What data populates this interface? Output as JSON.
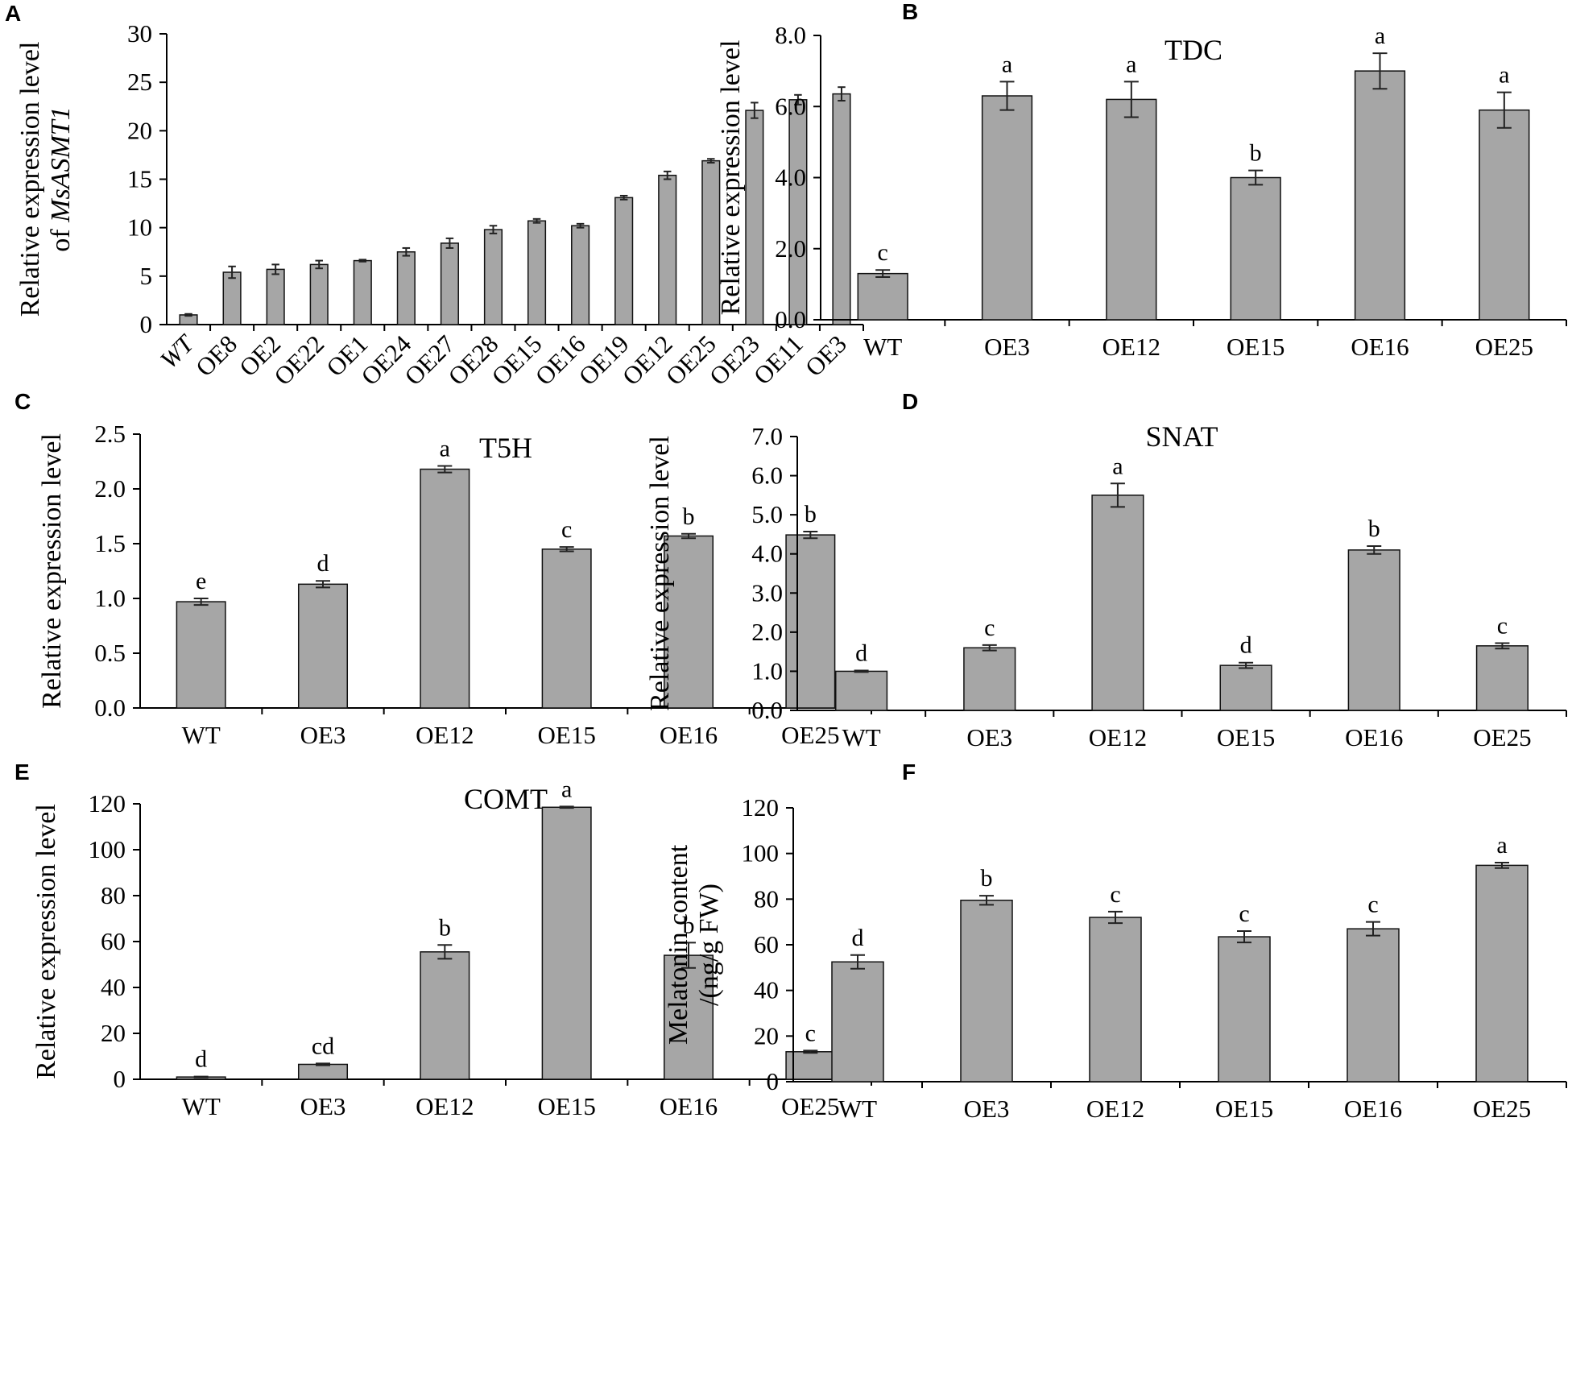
{
  "figure": {
    "colors": {
      "bar_fill": "#a6a6a6",
      "bar_stroke": "#111111",
      "axis": "#000000"
    }
  },
  "chart_data": [
    {
      "panel": "A",
      "type": "bar",
      "title": "",
      "ylabel_parts": [
        "Relative expression level",
        "of ",
        "MsASMT1"
      ],
      "categories": [
        "WT",
        "OE8",
        "OE2",
        "OE22",
        "OE1",
        "OE24",
        "OE27",
        "OE28",
        "OE15",
        "OE16",
        "OE19",
        "OE12",
        "OE25",
        "OE23",
        "OE11",
        "OE3"
      ],
      "values": [
        1.0,
        5.4,
        5.7,
        6.2,
        6.6,
        7.5,
        8.4,
        9.8,
        10.7,
        10.2,
        13.1,
        15.4,
        16.9,
        22.1,
        23.2,
        23.8
      ],
      "errors": [
        0.1,
        0.6,
        0.5,
        0.4,
        0.1,
        0.4,
        0.5,
        0.4,
        0.2,
        0.2,
        0.2,
        0.4,
        0.2,
        0.8,
        0.5,
        0.7
      ],
      "letters": [],
      "ylim": [
        0,
        30
      ],
      "yticks": [
        "0",
        "5",
        "10",
        "15",
        "20",
        "25",
        "30"
      ],
      "rotated_xticks": true
    },
    {
      "panel": "B",
      "type": "bar",
      "title": "TDC",
      "ylabel_parts": [
        "Relative expression level"
      ],
      "categories": [
        "WT",
        "OE3",
        "OE12",
        "OE15",
        "OE16",
        "OE25"
      ],
      "values": [
        1.3,
        6.3,
        6.2,
        4.0,
        7.0,
        5.9
      ],
      "errors": [
        0.1,
        0.4,
        0.5,
        0.2,
        0.5,
        0.5
      ],
      "letters": [
        "c",
        "a",
        "a",
        "b",
        "a",
        "a"
      ],
      "ylim": [
        0,
        8
      ],
      "yticks": [
        "0.0",
        "2.0",
        "4.0",
        "6.0",
        "8.0"
      ],
      "rotated_xticks": false
    },
    {
      "panel": "C",
      "type": "bar",
      "title": "T5H",
      "ylabel_parts": [
        "Relative expression level"
      ],
      "categories": [
        "WT",
        "OE3",
        "OE12",
        "OE15",
        "OE16",
        "OE25"
      ],
      "values": [
        0.97,
        1.13,
        2.18,
        1.45,
        1.57,
        1.58
      ],
      "errors": [
        0.03,
        0.03,
        0.03,
        0.02,
        0.02,
        0.03
      ],
      "letters": [
        "e",
        "d",
        "a",
        "c",
        "b",
        "b"
      ],
      "ylim": [
        0,
        2.5
      ],
      "yticks": [
        "0.0",
        "0.5",
        "1.0",
        "1.5",
        "2.0",
        "2.5"
      ],
      "rotated_xticks": false
    },
    {
      "panel": "D",
      "type": "bar",
      "title": "SNAT",
      "ylabel_parts": [
        "Relative expression level"
      ],
      "categories": [
        "WT",
        "OE3",
        "OE12",
        "OE15",
        "OE16",
        "OE25"
      ],
      "values": [
        1.0,
        1.6,
        5.5,
        1.15,
        4.1,
        1.65
      ],
      "errors": [
        0.02,
        0.07,
        0.3,
        0.07,
        0.1,
        0.07
      ],
      "letters": [
        "d",
        "c",
        "a",
        "d",
        "b",
        "c"
      ],
      "ylim": [
        0,
        7
      ],
      "yticks": [
        "0.0",
        "1.0",
        "2.0",
        "3.0",
        "4.0",
        "5.0",
        "6.0",
        "7.0"
      ],
      "rotated_xticks": false
    },
    {
      "panel": "E",
      "type": "bar",
      "title": "COMT",
      "ylabel_parts": [
        "Relative expression level"
      ],
      "categories": [
        "WT",
        "OE3",
        "OE12",
        "OE15",
        "OE16",
        "OE25"
      ],
      "values": [
        1.0,
        6.5,
        55.5,
        118.5,
        54.0,
        12.0
      ],
      "errors": [
        0.2,
        0.4,
        3.0,
        0.3,
        5.5,
        0.5
      ],
      "letters": [
        "d",
        "cd",
        "b",
        "a",
        "b",
        "c"
      ],
      "ylim": [
        0,
        120
      ],
      "yticks": [
        "0",
        "20",
        "40",
        "60",
        "80",
        "100",
        "120"
      ],
      "rotated_xticks": false
    },
    {
      "panel": "F",
      "type": "bar",
      "title": "",
      "ylabel_parts": [
        "Melatonin content",
        "/(ng/g FW)"
      ],
      "categories": [
        "WT",
        "OE3",
        "OE12",
        "OE15",
        "OE16",
        "OE25"
      ],
      "values": [
        52.5,
        79.5,
        72.0,
        63.5,
        67.0,
        94.8
      ],
      "errors": [
        3.0,
        2.0,
        2.5,
        2.5,
        3.0,
        1.2
      ],
      "letters": [
        "d",
        "b",
        "c",
        "c",
        "c",
        "a"
      ],
      "ylim": [
        0,
        120
      ],
      "yticks": [
        "0",
        "20",
        "40",
        "60",
        "80",
        "100",
        "120"
      ],
      "rotated_xticks": false
    }
  ]
}
